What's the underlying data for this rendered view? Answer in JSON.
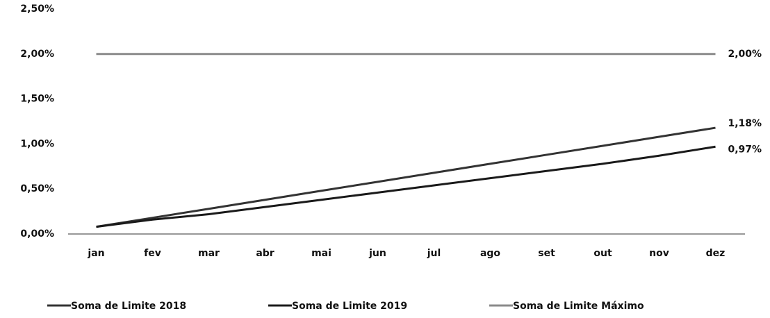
{
  "chart_data": {
    "type": "line",
    "categories": [
      "jan",
      "fev",
      "mar",
      "abr",
      "mai",
      "jun",
      "jul",
      "ago",
      "set",
      "out",
      "nov",
      "dez"
    ],
    "series": [
      {
        "name": "Soma de Limite 2018",
        "color": "#333333",
        "values": [
          0.08,
          0.18,
          0.28,
          0.38,
          0.48,
          0.58,
          0.68,
          0.78,
          0.88,
          0.98,
          1.08,
          1.18
        ],
        "value_labels": [
          null,
          null,
          null,
          null,
          null,
          null,
          null,
          null,
          null,
          null,
          null,
          "1,18%"
        ]
      },
      {
        "name": "Soma de Limite 2019",
        "color": "#1a1a1a",
        "values": [
          0.08,
          0.16,
          0.22,
          0.3,
          0.38,
          0.46,
          0.54,
          0.62,
          0.7,
          0.78,
          0.87,
          0.97
        ],
        "value_labels": [
          null,
          null,
          null,
          null,
          null,
          null,
          null,
          null,
          null,
          null,
          null,
          "0,97%"
        ]
      },
      {
        "name": "Soma de Limite Máximo",
        "color": "#8a8a8a",
        "values": [
          2,
          2,
          2,
          2,
          2,
          2,
          2,
          2,
          2,
          2,
          2,
          2
        ],
        "value_labels": [
          null,
          null,
          null,
          null,
          null,
          null,
          null,
          null,
          null,
          null,
          null,
          "2,00%"
        ]
      }
    ],
    "ylim": [
      0,
      2.5
    ],
    "yticks": [
      {
        "value": 0,
        "label": "0,00%"
      },
      {
        "value": 0.5,
        "label": "0,50%"
      },
      {
        "value": 1,
        "label": "1,00%"
      },
      {
        "value": 1.5,
        "label": "1,50%"
      },
      {
        "value": 2,
        "label": "2,00%"
      },
      {
        "value": 2.5,
        "label": "2,50%"
      }
    ],
    "grid": false,
    "legend": "bottom"
  }
}
